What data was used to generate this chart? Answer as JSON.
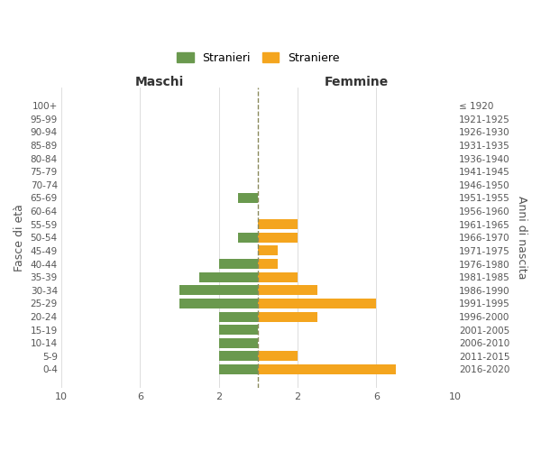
{
  "age_groups": [
    "100+",
    "95-99",
    "90-94",
    "85-89",
    "80-84",
    "75-79",
    "70-74",
    "65-69",
    "60-64",
    "55-59",
    "50-54",
    "45-49",
    "40-44",
    "35-39",
    "30-34",
    "25-29",
    "20-24",
    "15-19",
    "10-14",
    "5-9",
    "0-4"
  ],
  "birth_years": [
    "≤ 1920",
    "1921-1925",
    "1926-1930",
    "1931-1935",
    "1936-1940",
    "1941-1945",
    "1946-1950",
    "1951-1955",
    "1956-1960",
    "1961-1965",
    "1966-1970",
    "1971-1975",
    "1976-1980",
    "1981-1985",
    "1986-1990",
    "1991-1995",
    "1996-2000",
    "2001-2005",
    "2006-2010",
    "2011-2015",
    "2016-2020"
  ],
  "maschi": [
    0,
    0,
    0,
    0,
    0,
    0,
    0,
    1,
    0,
    0,
    1,
    0,
    2,
    3,
    4,
    4,
    2,
    2,
    2,
    2,
    2
  ],
  "femmine": [
    0,
    0,
    0,
    0,
    0,
    0,
    0,
    0,
    0,
    2,
    2,
    1,
    1,
    2,
    3,
    6,
    3,
    0,
    0,
    2,
    7
  ],
  "color_maschi": "#6a994e",
  "color_femmine": "#f4a51e",
  "xlabel_left": "Maschi",
  "xlabel_right": "Femmine",
  "ylabel_left": "Fasce di età",
  "ylabel_right": "Anni di nascita",
  "legend_maschi": "Stranieri",
  "legend_femmine": "Straniere",
  "xlim": 10,
  "xtick_positions": [
    -10,
    -6,
    -2,
    2,
    6,
    10
  ],
  "xticklabels": [
    "10",
    "6",
    "2",
    "2",
    "6",
    "10"
  ],
  "dashed_line_color": "#8a8a5c",
  "grid_color": "#d0d0d0",
  "bg_color": "#ffffff"
}
